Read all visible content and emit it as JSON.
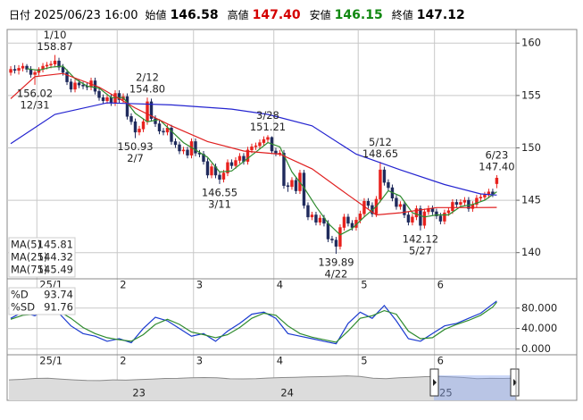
{
  "header": {
    "date_label": "日付",
    "datetime": "2025/06/23 16:00",
    "fields": [
      {
        "label": "始値",
        "value": "146.58",
        "color": "#000000"
      },
      {
        "label": "高値",
        "value": "147.40",
        "color": "#d40000"
      },
      {
        "label": "安値",
        "value": "146.15",
        "color": "#118811"
      },
      {
        "label": "終値",
        "value": "147.12",
        "color": "#000000"
      }
    ]
  },
  "chart_data": [
    {
      "type": "candlestick",
      "xlim": [
        -0.9,
        125.8
      ],
      "ylim": [
        137.5,
        161.3
      ],
      "yticks": [
        140,
        145,
        150,
        155,
        160
      ],
      "grid": true,
      "xticks": [
        {
          "value": 7,
          "label": "25/1"
        },
        {
          "value": 27,
          "label": "2"
        },
        {
          "value": 46,
          "label": "3"
        },
        {
          "value": 66,
          "label": "4"
        },
        {
          "value": 87,
          "label": "5"
        },
        {
          "value": 106,
          "label": "6"
        }
      ],
      "up_color": "#e8201c",
      "down_color": "#1f2a5c",
      "candles": {
        "open": [
          157.2,
          157.5,
          157.4,
          157.6,
          157.8,
          157.5,
          157.0,
          157.2,
          157.5,
          157.8,
          157.9,
          158.0,
          158.3,
          157.7,
          157.2,
          156.3,
          155.6,
          156.2,
          156.0,
          155.9,
          155.8,
          156.4,
          155.4,
          154.8,
          154.5,
          154.8,
          154.3,
          155.2,
          154.6,
          154.9,
          153.0,
          152.5,
          151.5,
          151.8,
          152.5,
          154.4,
          152.8,
          152.3,
          151.6,
          151.5,
          151.9,
          150.6,
          150.3,
          149.7,
          149.8,
          149.3,
          150.6,
          149.5,
          149.4,
          148.7,
          147.4,
          148.2,
          147.4,
          147.0,
          147.6,
          148.6,
          148.3,
          148.8,
          149.2,
          148.7,
          149.8,
          150.1,
          150.2,
          150.5,
          150.8,
          151.0,
          149.7,
          149.5,
          149.5,
          146.4,
          146.3,
          146.9,
          145.9,
          147.6,
          144.5,
          143.4,
          143.6,
          142.9,
          143.3,
          142.8,
          141.3,
          141.2,
          140.6,
          142.4,
          143.4,
          142.8,
          142.4,
          143.1,
          143.7,
          144.9,
          144.5,
          143.7,
          145.1,
          147.9,
          146.7,
          146.2,
          145.2,
          144.4,
          144.6,
          143.6,
          142.9,
          143.4,
          144.2,
          142.6,
          143.9,
          144.2,
          143.9,
          143.5,
          143.0,
          143.8,
          144.0,
          144.8,
          144.6,
          144.8,
          145.0,
          144.2,
          144.6,
          145.2,
          145.3,
          145.5,
          145.8,
          146.58
        ],
        "high": [
          157.8,
          157.9,
          157.9,
          158.1,
          158.0,
          157.8,
          157.4,
          157.7,
          158.1,
          158.2,
          158.3,
          158.87,
          158.6,
          158.0,
          157.5,
          156.6,
          156.5,
          156.5,
          156.3,
          156.2,
          156.7,
          156.7,
          155.7,
          155.1,
          155.1,
          155.1,
          155.5,
          155.5,
          155.2,
          155.2,
          153.3,
          152.8,
          152.1,
          152.8,
          154.8,
          154.7,
          153.1,
          152.6,
          151.9,
          152.2,
          152.2,
          150.9,
          150.6,
          150.1,
          150.1,
          150.9,
          150.9,
          149.8,
          149.7,
          149.0,
          148.5,
          148.5,
          147.7,
          147.9,
          148.9,
          148.9,
          149.1,
          149.5,
          149.5,
          150.1,
          150.4,
          150.5,
          150.8,
          151.1,
          151.21,
          151.1,
          150.0,
          149.8,
          149.8,
          146.7,
          147.2,
          147.2,
          147.9,
          147.9,
          144.8,
          143.9,
          143.9,
          143.6,
          143.6,
          143.1,
          141.6,
          141.5,
          142.7,
          143.7,
          143.7,
          143.1,
          143.4,
          144.0,
          145.2,
          145.2,
          144.8,
          145.4,
          148.65,
          148.2,
          147.0,
          146.5,
          145.5,
          144.9,
          144.9,
          143.9,
          143.7,
          144.5,
          144.5,
          144.2,
          144.5,
          144.5,
          144.2,
          143.8,
          144.1,
          144.3,
          145.1,
          145.1,
          145.1,
          145.3,
          145.3,
          144.9,
          145.5,
          145.6,
          145.8,
          146.1,
          146.1,
          147.4
        ],
        "low": [
          156.9,
          157.1,
          157.0,
          157.3,
          157.2,
          156.7,
          156.02,
          156.9,
          157.2,
          157.5,
          157.6,
          157.7,
          157.4,
          156.9,
          156.0,
          155.3,
          155.3,
          155.7,
          155.6,
          155.5,
          155.5,
          155.1,
          154.5,
          154.2,
          154.2,
          154.0,
          154.0,
          154.3,
          154.3,
          152.7,
          152.2,
          150.93,
          151.2,
          151.5,
          152.2,
          152.5,
          152.0,
          151.3,
          151.2,
          151.2,
          150.3,
          150.0,
          149.4,
          149.4,
          149.0,
          149.0,
          149.2,
          149.1,
          148.4,
          147.1,
          147.1,
          147.1,
          146.55,
          146.7,
          147.3,
          148.0,
          148.0,
          148.5,
          148.4,
          148.4,
          149.5,
          149.8,
          149.9,
          150.2,
          150.5,
          149.4,
          149.2,
          149.2,
          146.1,
          145.8,
          146.0,
          145.6,
          145.6,
          144.2,
          143.1,
          143.1,
          142.6,
          142.6,
          142.5,
          141.0,
          140.9,
          139.89,
          140.3,
          142.1,
          142.5,
          142.1,
          142.1,
          142.8,
          143.4,
          144.2,
          143.4,
          143.4,
          144.8,
          146.4,
          145.9,
          144.9,
          144.1,
          144.1,
          143.3,
          142.6,
          142.6,
          143.1,
          142.12,
          142.3,
          143.6,
          143.6,
          143.2,
          142.7,
          142.7,
          143.5,
          143.7,
          144.3,
          144.3,
          144.5,
          143.9,
          143.9,
          144.3,
          144.9,
          145.0,
          145.2,
          145.3,
          146.15
        ],
        "close": [
          157.5,
          157.4,
          157.6,
          157.8,
          157.5,
          157.0,
          157.2,
          157.5,
          157.8,
          157.9,
          158.0,
          158.3,
          157.7,
          157.2,
          156.3,
          155.6,
          156.2,
          156.0,
          155.9,
          155.8,
          156.4,
          155.4,
          154.8,
          154.5,
          154.8,
          154.3,
          155.2,
          154.6,
          154.9,
          153.0,
          152.5,
          151.5,
          151.8,
          152.5,
          154.4,
          152.8,
          152.3,
          151.6,
          151.5,
          151.9,
          150.6,
          150.3,
          149.7,
          149.8,
          149.3,
          150.6,
          149.5,
          149.4,
          148.7,
          147.4,
          148.2,
          147.4,
          147.0,
          147.6,
          148.6,
          148.3,
          148.8,
          149.2,
          148.7,
          149.8,
          150.1,
          150.2,
          150.5,
          150.8,
          151.0,
          149.7,
          149.5,
          149.5,
          146.4,
          146.3,
          146.9,
          145.9,
          147.6,
          144.5,
          143.4,
          143.6,
          142.9,
          143.3,
          142.8,
          141.3,
          141.2,
          140.6,
          142.4,
          143.4,
          142.8,
          142.4,
          143.1,
          143.7,
          144.9,
          144.5,
          143.7,
          145.1,
          147.9,
          146.7,
          146.2,
          145.2,
          144.4,
          144.6,
          143.6,
          142.9,
          143.4,
          144.2,
          142.6,
          143.9,
          144.2,
          143.9,
          143.5,
          143.0,
          143.8,
          144.0,
          144.8,
          144.6,
          144.8,
          145.0,
          144.2,
          144.6,
          145.2,
          145.3,
          145.5,
          145.8,
          145.6,
          147.12
        ]
      },
      "series": [
        {
          "name": "MA(5)",
          "color": "#2e8b2e",
          "x": [
            4,
            7,
            10,
            13,
            16,
            19,
            22,
            25,
            28,
            31,
            34,
            37,
            40,
            43,
            46,
            49,
            52,
            55,
            58,
            61,
            64,
            67,
            70,
            73,
            76,
            79,
            82,
            85,
            88,
            91,
            94,
            97,
            100,
            103,
            106,
            109,
            112,
            115,
            118,
            121
          ],
          "values": [
            157.56,
            157.4,
            157.7,
            157.8,
            156.6,
            155.9,
            155.7,
            154.8,
            154.8,
            153.3,
            152.5,
            152.7,
            151.6,
            150.5,
            149.8,
            149.1,
            147.7,
            147.8,
            148.7,
            149.6,
            150.5,
            150.1,
            147.7,
            146.2,
            144.4,
            142.8,
            141.7,
            142.3,
            143.4,
            144.4,
            145.9,
            145.4,
            143.8,
            143.4,
            143.6,
            143.6,
            144.4,
            144.6,
            145.0,
            145.81
          ]
        },
        {
          "name": "MA(25)",
          "color": "#e02020",
          "x": [
            0,
            6,
            13,
            22,
            31,
            40,
            49,
            58,
            67,
            75,
            84,
            91,
            97,
            106,
            115,
            121
          ],
          "values": [
            154.7,
            156.8,
            157.1,
            155.8,
            153.8,
            152.1,
            150.6,
            149.7,
            149.4,
            148.0,
            145.5,
            143.6,
            143.8,
            144.3,
            144.3,
            144.32
          ]
        },
        {
          "name": "MA(75)",
          "color": "#2424d0",
          "x": [
            0,
            11,
            24,
            40,
            55,
            64,
            75,
            86,
            97,
            108,
            117,
            121
          ],
          "values": [
            150.4,
            153.2,
            154.3,
            154.1,
            153.7,
            153.2,
            152.1,
            149.4,
            147.9,
            146.5,
            145.6,
            145.49
          ]
        }
      ],
      "annotations": [
        {
          "index": 6,
          "value": 156.02,
          "date": "12/31",
          "position": "below"
        },
        {
          "index": 11,
          "value": 158.87,
          "date": "1/10",
          "position": "above"
        },
        {
          "index": 31,
          "value": 150.93,
          "date": "2/7",
          "position": "below"
        },
        {
          "index": 34,
          "value": 154.8,
          "value_label": "154.80",
          "date": "2/12",
          "position": "above"
        },
        {
          "index": 52,
          "value": 146.55,
          "date": "3/11",
          "position": "below"
        },
        {
          "index": 64,
          "value": 151.21,
          "date": "3/28",
          "position": "above"
        },
        {
          "index": 81,
          "value": 139.89,
          "date": "4/22",
          "position": "below"
        },
        {
          "index": 92,
          "value": 148.65,
          "date": "5/12",
          "position": "above"
        },
        {
          "index": 102,
          "value": 142.12,
          "date": "5/27",
          "position": "below"
        },
        {
          "index": 121,
          "value": 147.4,
          "value_label": "147.40",
          "date": "6/23",
          "position": "above"
        }
      ]
    },
    {
      "type": "line",
      "xlim": [
        -0.9,
        125.8
      ],
      "ylim": [
        -11.5,
        137.4
      ],
      "grid": true,
      "yticks": [
        {
          "value": 80,
          "label": "80.000"
        },
        {
          "value": 40,
          "label": "40.000"
        },
        {
          "value": 0,
          "label": "0.000"
        }
      ],
      "series": [
        {
          "name": "%D",
          "color": "#1a3ad0",
          "x": [
            0,
            3,
            6,
            9,
            12,
            15,
            18,
            21,
            24,
            27,
            30,
            33,
            36,
            39,
            42,
            45,
            48,
            51,
            54,
            57,
            60,
            63,
            66,
            69,
            72,
            75,
            78,
            81,
            84,
            87,
            90,
            93,
            96,
            99,
            102,
            105,
            108,
            111,
            114,
            117,
            120,
            121
          ],
          "values": [
            60,
            72,
            65,
            78,
            70,
            45,
            30,
            25,
            15,
            20,
            12,
            40,
            62,
            55,
            40,
            25,
            30,
            15,
            35,
            50,
            68,
            72,
            60,
            30,
            25,
            20,
            15,
            10,
            50,
            72,
            60,
            85,
            55,
            20,
            15,
            30,
            45,
            50,
            60,
            70,
            88,
            93.74
          ]
        },
        {
          "name": "%SD",
          "color": "#2e8b2e",
          "x": [
            0,
            3,
            6,
            9,
            12,
            15,
            18,
            21,
            24,
            27,
            30,
            33,
            36,
            39,
            42,
            45,
            48,
            51,
            54,
            57,
            60,
            63,
            66,
            69,
            72,
            75,
            78,
            81,
            84,
            87,
            90,
            93,
            96,
            99,
            102,
            105,
            108,
            111,
            114,
            117,
            120,
            121
          ],
          "values": [
            58,
            66,
            68,
            72,
            74,
            60,
            42,
            30,
            22,
            18,
            15,
            28,
            48,
            58,
            48,
            33,
            28,
            22,
            28,
            42,
            60,
            70,
            66,
            45,
            30,
            23,
            18,
            13,
            35,
            60,
            65,
            75,
            68,
            35,
            20,
            22,
            38,
            48,
            56,
            66,
            82,
            91.76
          ]
        }
      ]
    },
    {
      "type": "area",
      "xlim": [
        0,
        39
      ],
      "ylim": [
        0,
        300
      ],
      "color": "#8a8a8a",
      "fill": "#dcdcdc",
      "xticks": [
        {
          "value": 10,
          "label": "23"
        },
        {
          "value": 21.4,
          "label": "24"
        },
        {
          "value": 33.6,
          "label": "25"
        }
      ],
      "values": [
        135,
        138,
        144,
        146,
        140,
        135,
        131,
        130,
        135,
        133,
        137,
        140,
        144,
        145,
        148,
        150,
        149,
        142,
        141,
        143,
        147,
        150,
        151,
        154,
        156,
        158,
        161,
        157,
        146,
        143,
        148,
        152,
        156,
        157,
        154,
        150,
        143,
        145,
        144,
        146
      ]
    }
  ]
}
